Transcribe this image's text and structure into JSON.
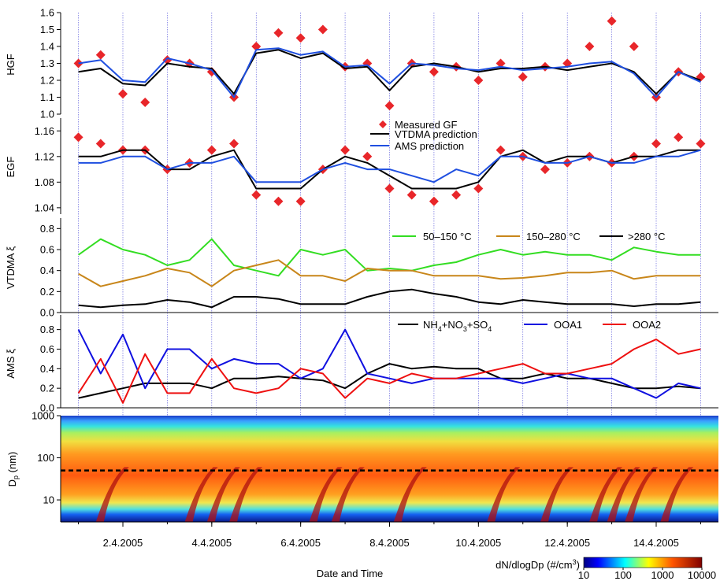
{
  "figure": {
    "xlabel": "Date and Time",
    "x_tick_labels": [
      "2.4.2005",
      "4.4.2005",
      "6.4.2005",
      "8.4.2005",
      "10.4.2005",
      "12.4.2005",
      "14.4.2005"
    ],
    "colorbar_label": "dN/dlogDp (#/cm",
    "colorbar_label_sup": "3",
    "colorbar_label_end": ")",
    "colorbar_tick_labels": [
      "10",
      "100",
      "1000",
      "10000"
    ]
  },
  "colors": {
    "measured": "#e8262a",
    "vtdma": "#000000",
    "ams": "#1f4fe0",
    "f50_150": "#33dd22",
    "f150_280": "#c8861a",
    "f280": "#000000",
    "inorganic": "#000000",
    "ooa1": "#1010e0",
    "ooa2": "#ee1010",
    "day_gridline": "#5050d8",
    "cutoff_line": "#000000"
  },
  "chart_data": [
    {
      "type": "line",
      "panel": "HGF",
      "ylabel": "HGF",
      "ylim": [
        1.0,
        1.6
      ],
      "yticks": [
        "1.0",
        "1.1",
        "1.2",
        "1.3",
        "1.4",
        "1.5",
        "1.6"
      ],
      "x_days": [
        1.0,
        1.5,
        2.0,
        2.5,
        3.0,
        3.5,
        4.0,
        4.5,
        5.0,
        5.5,
        6.0,
        6.5,
        7.0,
        7.5,
        8.0,
        8.5,
        9.0,
        9.5,
        10.0,
        10.5,
        11.0,
        11.5,
        12.0,
        12.5,
        13.0,
        13.5,
        14.0,
        14.5,
        15.0
      ],
      "series": [
        {
          "name": "Measured GF",
          "marker": "diamond",
          "values": [
            1.3,
            1.35,
            1.12,
            1.07,
            1.32,
            1.3,
            1.25,
            1.1,
            1.4,
            1.48,
            1.45,
            1.5,
            1.28,
            1.3,
            1.05,
            1.3,
            1.25,
            1.28,
            1.2,
            1.3,
            1.22,
            1.28,
            1.3,
            1.4,
            1.55,
            1.4,
            1.1,
            1.25,
            1.22
          ]
        },
        {
          "name": "VTDMA prediction",
          "values": [
            1.25,
            1.27,
            1.18,
            1.17,
            1.3,
            1.28,
            1.27,
            1.12,
            1.36,
            1.38,
            1.33,
            1.36,
            1.27,
            1.28,
            1.14,
            1.28,
            1.3,
            1.28,
            1.25,
            1.27,
            1.27,
            1.28,
            1.26,
            1.28,
            1.3,
            1.25,
            1.12,
            1.25,
            1.2
          ]
        },
        {
          "name": "AMS prediction",
          "values": [
            1.3,
            1.32,
            1.2,
            1.19,
            1.33,
            1.3,
            1.26,
            1.1,
            1.38,
            1.39,
            1.35,
            1.37,
            1.28,
            1.29,
            1.18,
            1.3,
            1.29,
            1.27,
            1.26,
            1.28,
            1.26,
            1.27,
            1.28,
            1.3,
            1.31,
            1.24,
            1.1,
            1.25,
            1.19
          ]
        }
      ]
    },
    {
      "type": "line",
      "panel": "EGF",
      "ylabel": "EGF",
      "ylim": [
        1.03,
        1.18
      ],
      "yticks": [
        "1.04",
        "1.08",
        "1.12",
        "1.16"
      ],
      "x_days": [
        1.0,
        1.5,
        2.0,
        2.5,
        3.0,
        3.5,
        4.0,
        4.5,
        5.0,
        5.5,
        6.0,
        6.5,
        7.0,
        7.5,
        8.0,
        8.5,
        9.0,
        9.5,
        10.0,
        10.5,
        11.0,
        11.5,
        12.0,
        12.5,
        13.0,
        13.5,
        14.0,
        14.5,
        15.0
      ],
      "series": [
        {
          "name": "Measured GF",
          "marker": "diamond",
          "values": [
            1.15,
            1.14,
            1.13,
            1.13,
            1.1,
            1.11,
            1.13,
            1.14,
            1.06,
            1.05,
            1.05,
            1.1,
            1.13,
            1.12,
            1.07,
            1.06,
            1.05,
            1.06,
            1.07,
            1.13,
            1.12,
            1.1,
            1.11,
            1.12,
            1.11,
            1.12,
            1.14,
            1.15,
            1.14
          ]
        },
        {
          "name": "VTDMA prediction",
          "values": [
            1.12,
            1.12,
            1.13,
            1.13,
            1.1,
            1.1,
            1.12,
            1.13,
            1.07,
            1.07,
            1.07,
            1.1,
            1.12,
            1.11,
            1.09,
            1.07,
            1.07,
            1.07,
            1.08,
            1.12,
            1.13,
            1.11,
            1.12,
            1.12,
            1.11,
            1.12,
            1.12,
            1.13,
            1.13
          ]
        },
        {
          "name": "AMS prediction",
          "values": [
            1.11,
            1.11,
            1.12,
            1.12,
            1.1,
            1.11,
            1.11,
            1.12,
            1.08,
            1.08,
            1.08,
            1.1,
            1.11,
            1.1,
            1.1,
            1.09,
            1.08,
            1.1,
            1.09,
            1.12,
            1.12,
            1.11,
            1.11,
            1.12,
            1.11,
            1.11,
            1.12,
            1.12,
            1.13
          ]
        }
      ]
    },
    {
      "type": "line",
      "panel": "VTDMA",
      "ylabel": "VTDMA ξ",
      "ylim": [
        0.0,
        0.9
      ],
      "yticks": [
        "0.0",
        "0.2",
        "0.4",
        "0.6",
        "0.8"
      ],
      "x_days": [
        1.0,
        1.5,
        2.0,
        2.5,
        3.0,
        3.5,
        4.0,
        4.5,
        5.0,
        5.5,
        6.0,
        6.5,
        7.0,
        7.5,
        8.0,
        8.5,
        9.0,
        9.5,
        10.0,
        10.5,
        11.0,
        11.5,
        12.0,
        12.5,
        13.0,
        13.5,
        14.0,
        14.5,
        15.0
      ],
      "series": [
        {
          "name": "50–150 °C",
          "values": [
            0.55,
            0.7,
            0.6,
            0.55,
            0.45,
            0.5,
            0.7,
            0.45,
            0.4,
            0.35,
            0.6,
            0.55,
            0.6,
            0.4,
            0.42,
            0.4,
            0.45,
            0.48,
            0.55,
            0.6,
            0.55,
            0.58,
            0.55,
            0.55,
            0.5,
            0.62,
            0.58,
            0.55,
            0.55
          ]
        },
        {
          "name": "150–280 °C",
          "values": [
            0.37,
            0.25,
            0.3,
            0.35,
            0.42,
            0.38,
            0.25,
            0.4,
            0.45,
            0.5,
            0.35,
            0.35,
            0.3,
            0.42,
            0.4,
            0.4,
            0.35,
            0.35,
            0.35,
            0.32,
            0.33,
            0.35,
            0.38,
            0.38,
            0.4,
            0.32,
            0.35,
            0.35,
            0.35
          ]
        },
        {
          "name": ">280 °C",
          "values": [
            0.07,
            0.05,
            0.07,
            0.08,
            0.12,
            0.1,
            0.05,
            0.15,
            0.15,
            0.13,
            0.08,
            0.08,
            0.08,
            0.15,
            0.2,
            0.22,
            0.18,
            0.15,
            0.1,
            0.08,
            0.12,
            0.1,
            0.08,
            0.08,
            0.08,
            0.06,
            0.08,
            0.08,
            0.1
          ]
        }
      ]
    },
    {
      "type": "line",
      "panel": "AMS",
      "ylabel": "AMS ξ",
      "ylim": [
        0.0,
        0.95
      ],
      "yticks": [
        "0.0",
        "0.2",
        "0.4",
        "0.6",
        "0.8"
      ],
      "x_days": [
        1.0,
        1.5,
        2.0,
        2.5,
        3.0,
        3.5,
        4.0,
        4.5,
        5.0,
        5.5,
        6.0,
        6.5,
        7.0,
        7.5,
        8.0,
        8.5,
        9.0,
        9.5,
        10.0,
        10.5,
        11.0,
        11.5,
        12.0,
        12.5,
        13.0,
        13.5,
        14.0,
        14.5,
        15.0
      ],
      "series": [
        {
          "name": "NH4+NO3+SO4",
          "values": [
            0.1,
            0.15,
            0.2,
            0.25,
            0.25,
            0.25,
            0.2,
            0.3,
            0.3,
            0.32,
            0.3,
            0.28,
            0.2,
            0.35,
            0.45,
            0.4,
            0.42,
            0.4,
            0.4,
            0.3,
            0.3,
            0.35,
            0.3,
            0.3,
            0.25,
            0.2,
            0.2,
            0.22,
            0.2
          ]
        },
        {
          "name": "OOA1",
          "values": [
            0.8,
            0.35,
            0.75,
            0.2,
            0.6,
            0.6,
            0.4,
            0.5,
            0.45,
            0.45,
            0.3,
            0.4,
            0.8,
            0.35,
            0.3,
            0.25,
            0.3,
            0.3,
            0.3,
            0.3,
            0.25,
            0.3,
            0.35,
            0.3,
            0.3,
            0.2,
            0.1,
            0.25,
            0.2
          ]
        },
        {
          "name": "OOA2",
          "values": [
            0.15,
            0.5,
            0.05,
            0.55,
            0.15,
            0.15,
            0.5,
            0.2,
            0.15,
            0.2,
            0.4,
            0.35,
            0.1,
            0.3,
            0.25,
            0.35,
            0.3,
            0.3,
            0.35,
            0.4,
            0.45,
            0.35,
            0.35,
            0.4,
            0.45,
            0.6,
            0.7,
            0.55,
            0.6
          ]
        }
      ]
    },
    {
      "type": "heatmap",
      "panel": "size distribution",
      "ylabel": "Dp (nm)",
      "ylabel_main": "D",
      "ylabel_sub": "p",
      "ylabel_unit": " (nm)",
      "yscale": "log",
      "ylim": [
        3,
        1000
      ],
      "yticks": [
        "10",
        "100",
        "1000"
      ],
      "cutoff_diameter_nm": 50,
      "colorbar": {
        "scale": "log",
        "range": [
          10,
          10000
        ]
      },
      "nucleation_event_days": [
        1.5,
        3.5,
        4.0,
        4.5,
        6.3,
        6.8,
        8.2,
        10.3,
        11.5,
        12.6,
        13.0,
        13.4,
        14.2
      ]
    }
  ],
  "legends": {
    "gf": [
      "Measured GF",
      "VTDMA prediction",
      "AMS prediction"
    ],
    "vtdma": [
      "50–150 °C",
      "150–280 °C",
      ">280 °C"
    ],
    "ams_parts": {
      "nh": "NH",
      "s4a": "4",
      "no": "+NO",
      "s3": "3",
      "so": "+SO",
      "s4b": "4"
    },
    "ams_rest": [
      "OOA1",
      "OOA2"
    ]
  }
}
